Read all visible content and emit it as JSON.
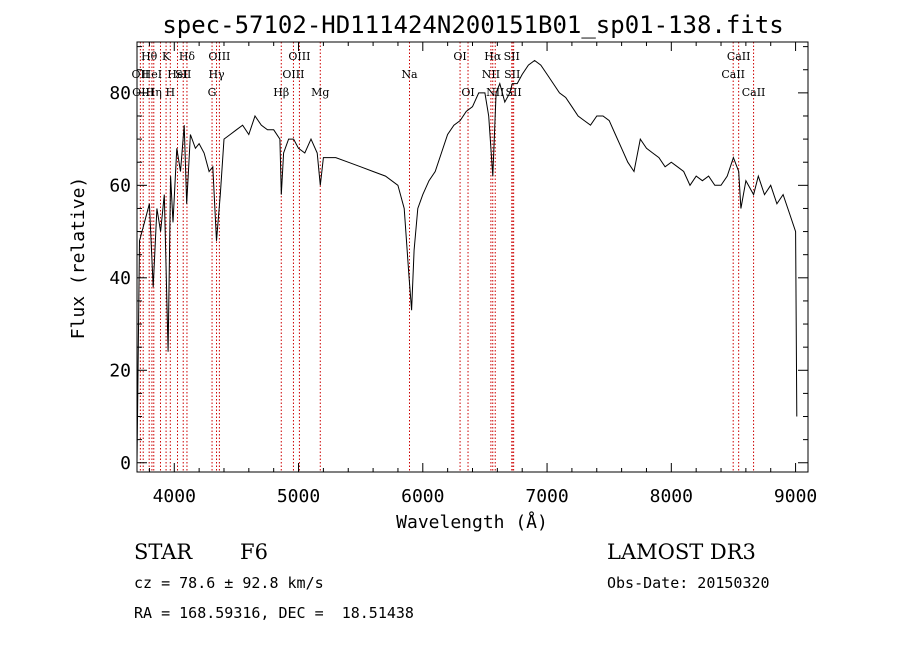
{
  "chart_data": {
    "type": "line",
    "title": "spec-57102-HD111424N200151B01_sp01-138.fits",
    "xlabel": "Wavelength (Å)",
    "ylabel": "Flux (relative)",
    "xlim": [
      3700,
      9100
    ],
    "ylim": [
      -2,
      91
    ],
    "xticks": [
      4000,
      5000,
      6000,
      7000,
      8000,
      9000
    ],
    "yticks": [
      0,
      20,
      40,
      60,
      80
    ],
    "grid": false,
    "line_color": "#000000",
    "marker_color": "#cc0000",
    "series": [
      {
        "x": [
          3700,
          3720,
          3760,
          3800,
          3830,
          3860,
          3890,
          3920,
          3950,
          3970,
          3990,
          4020,
          4050,
          4080,
          4100,
          4130,
          4170,
          4200,
          4240,
          4280,
          4310,
          4340,
          4370,
          4400,
          4450,
          4500,
          4550,
          4600,
          4650,
          4700,
          4750,
          4800,
          4850,
          4861,
          4880,
          4920,
          4960,
          5000,
          5050,
          5100,
          5150,
          5175,
          5200,
          5300,
          5400,
          5500,
          5600,
          5700,
          5800,
          5850,
          5890,
          5910,
          5930,
          5960,
          6000,
          6050,
          6100,
          6150,
          6200,
          6250,
          6300,
          6350,
          6400,
          6450,
          6500,
          6530,
          6563,
          6590,
          6620,
          6660,
          6700,
          6720,
          6760,
          6800,
          6850,
          6900,
          6950,
          7000,
          7050,
          7100,
          7150,
          7200,
          7250,
          7300,
          7350,
          7400,
          7450,
          7500,
          7550,
          7600,
          7650,
          7700,
          7750,
          7800,
          7850,
          7900,
          7950,
          8000,
          8050,
          8100,
          8150,
          8200,
          8250,
          8300,
          8350,
          8400,
          8450,
          8500,
          8542,
          8560,
          8600,
          8662,
          8700,
          8750,
          8800,
          8850,
          8900,
          8950,
          9000,
          9010
        ],
        "y": [
          0,
          48,
          52,
          56,
          38,
          55,
          50,
          58,
          24,
          62,
          52,
          68,
          63,
          73,
          56,
          71,
          68,
          69,
          67,
          63,
          64,
          48,
          58,
          70,
          71,
          72,
          73,
          71,
          75,
          73,
          72,
          72,
          70,
          58,
          67,
          70,
          70,
          68,
          67,
          70,
          67,
          60,
          66,
          66,
          65,
          64,
          63,
          62,
          60,
          55,
          40,
          33,
          46,
          55,
          58,
          61,
          63,
          67,
          71,
          73,
          74,
          76,
          77,
          80,
          80,
          75,
          62,
          80,
          82,
          78,
          80,
          82,
          82,
          84,
          86,
          87,
          86,
          84,
          82,
          80,
          79,
          77,
          75,
          74,
          73,
          75,
          75,
          74,
          71,
          68,
          65,
          63,
          70,
          68,
          67,
          66,
          64,
          65,
          64,
          63,
          60,
          62,
          61,
          62,
          60,
          60,
          62,
          66,
          63,
          55,
          61,
          58,
          62,
          58,
          60,
          56,
          58,
          54,
          50,
          10
        ]
      }
    ],
    "markers": [
      {
        "x": 3727,
        "label": "OII",
        "row": 1
      },
      {
        "x": 3750,
        "label": "OIII",
        "row": 2
      },
      {
        "x": 3798,
        "label": "Hθ",
        "row": 0
      },
      {
        "x": 3820,
        "label": "HeI",
        "row": 1
      },
      {
        "x": 3835,
        "label": "Hη",
        "row": 2
      },
      {
        "x": 3889,
        "label": "",
        "row": -1
      },
      {
        "x": 3934,
        "label": "K",
        "row": 0
      },
      {
        "x": 3968,
        "label": "H",
        "row": 2
      },
      {
        "x": 4026,
        "label": "HeI",
        "row": 1
      },
      {
        "x": 4072,
        "label": "SII",
        "row": 1
      },
      {
        "x": 4102,
        "label": "Hδ",
        "row": 0
      },
      {
        "x": 4304,
        "label": "G",
        "row": 2
      },
      {
        "x": 4340,
        "label": "Hγ",
        "row": 1
      },
      {
        "x": 4363,
        "label": "OIII",
        "row": 0
      },
      {
        "x": 4861,
        "label": "Hβ",
        "row": 2
      },
      {
        "x": 4959,
        "label": "OIII",
        "row": 1
      },
      {
        "x": 5007,
        "label": "OIII",
        "row": 0
      },
      {
        "x": 5175,
        "label": "Mg",
        "row": 2
      },
      {
        "x": 5893,
        "label": "Na",
        "row": 1
      },
      {
        "x": 6300,
        "label": "OI",
        "row": 0
      },
      {
        "x": 6364,
        "label": "OI",
        "row": 2
      },
      {
        "x": 6548,
        "label": "NII",
        "row": 1
      },
      {
        "x": 6563,
        "label": "Hα",
        "row": 0
      },
      {
        "x": 6583,
        "label": "NII",
        "row": 2
      },
      {
        "x": 6716,
        "label": "SII",
        "row": 0
      },
      {
        "x": 6720,
        "label": "SII",
        "row": 1
      },
      {
        "x": 6731,
        "label": "SII",
        "row": 2
      },
      {
        "x": 8498,
        "label": "CaII",
        "row": 1
      },
      {
        "x": 8542,
        "label": "CaII",
        "row": 0
      },
      {
        "x": 8662,
        "label": "CaII",
        "row": 2
      }
    ]
  },
  "info": {
    "class_label": "STAR",
    "subclass": "F6",
    "survey": "LAMOST DR3",
    "cz": "cz = 78.6 ± 92.8 km/s",
    "obs_date": "Obs-Date: 20150320",
    "coords": "RA = 168.59316, DEC =  18.51438"
  }
}
